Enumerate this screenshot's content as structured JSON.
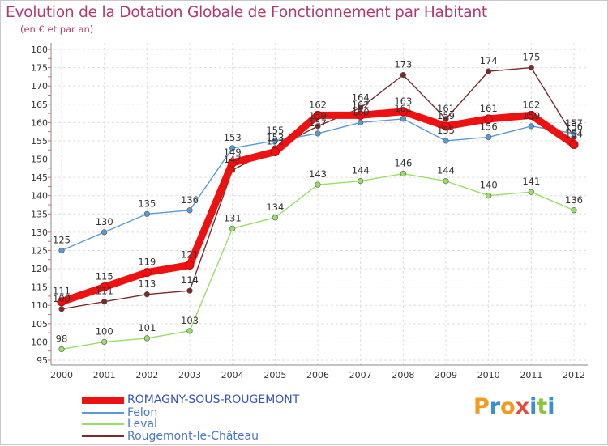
{
  "chart_data": {
    "type": "line",
    "title": "Evolution de la Dotation Globale de Fonctionnement par Habitant",
    "subtitle": "(en € et par an)",
    "xlabel": "",
    "ylabel": "",
    "ylim": [
      95,
      180
    ],
    "yticks": [
      "95",
      "100",
      "105",
      "110",
      "115",
      "120",
      "125",
      "130",
      "135",
      "140",
      "145",
      "150",
      "155",
      "160",
      "165",
      "170",
      "175",
      "180"
    ],
    "categories": [
      "2000",
      "2001",
      "2002",
      "2003",
      "2004",
      "2005",
      "2006",
      "2007",
      "2008",
      "2009",
      "2010",
      "2011",
      "2012"
    ],
    "grid": true,
    "legend_position": "bottom-left",
    "series": [
      {
        "name": "ROMAGNY-SOUS-ROUGEMONT",
        "color": "#ee1111",
        "style": "thick",
        "values": [
          111,
          115,
          119,
          121,
          149,
          152,
          162,
          162,
          163,
          159,
          161,
          162,
          154
        ],
        "labels": [
          "111",
          "115",
          "119",
          "121",
          "149",
          "152",
          "162",
          "162",
          "163",
          "159",
          "161",
          "162",
          "154"
        ]
      },
      {
        "name": "Felon",
        "color": "#5a9ad2",
        "style": "thin",
        "values": [
          125,
          130,
          135,
          136,
          153,
          155,
          157,
          160,
          161,
          155,
          156,
          159,
          157
        ],
        "labels": [
          "125",
          "130",
          "135",
          "136",
          "153",
          "155",
          "157",
          "160",
          "161",
          "155",
          "156",
          "159",
          "157"
        ]
      },
      {
        "name": "Leval",
        "color": "#99dd66",
        "style": "thin",
        "values": [
          98,
          100,
          101,
          103,
          131,
          134,
          143,
          144,
          146,
          144,
          140,
          141,
          136
        ],
        "labels": [
          "98",
          "100",
          "101",
          "103",
          "131",
          "134",
          "143",
          "144",
          "146",
          "144",
          "140",
          "141",
          "136"
        ]
      },
      {
        "name": "Rougemont-le-Château",
        "color": "#7a2a2a",
        "style": "thin",
        "values": [
          109,
          111,
          113,
          114,
          147,
          153,
          159,
          164,
          173,
          161,
          174,
          175,
          156
        ],
        "labels": [
          "109",
          "111",
          "113",
          "114",
          "147",
          "153",
          "159",
          "164",
          "173",
          "161",
          "174",
          "175",
          "156"
        ]
      }
    ]
  },
  "logo": {
    "letters": [
      "P",
      "r",
      "o",
      "x",
      "i",
      "t",
      "i"
    ],
    "colors": [
      "#f29a1d",
      "#3b8fd6",
      "#f29a1d",
      "#e8483e",
      "#3b8fd6",
      "#8cc63f",
      "#3b8fd6"
    ]
  }
}
